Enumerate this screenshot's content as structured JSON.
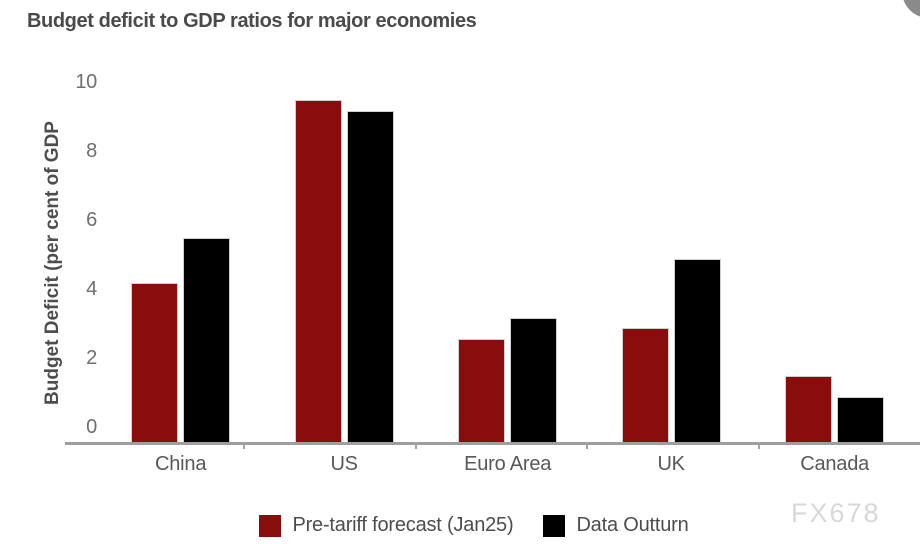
{
  "page": {
    "watermark": "FX678"
  },
  "colors": {
    "series_red": "#8a0d0d",
    "series_black": "#000000",
    "axis_line": "#9e9e9e",
    "title_text": "#4a4a4a",
    "tick_text": "#6e6e6e",
    "corner_circle": "#8a8a8a",
    "watermark_text": "#d8d8d6"
  },
  "chart_data": {
    "type": "bar",
    "title": "Budget deficit to GDP ratios for major economies",
    "ylabel": "Budget Deficit (per cent of GDP",
    "xlabel": "",
    "categories": [
      "China",
      "US",
      "Euro Area",
      "UK",
      "Canada"
    ],
    "series": [
      {
        "name": "Pre-tariff forecast (Jan25)",
        "color": "#8a0d0d",
        "values": [
          4.6,
          9.9,
          3.0,
          3.3,
          1.9
        ]
      },
      {
        "name": "Data Outturn",
        "color": "#000000",
        "values": [
          5.9,
          9.6,
          3.6,
          5.3,
          1.3
        ]
      }
    ],
    "ylim": [
      0,
      10
    ],
    "yticks": [
      0,
      2,
      4,
      6,
      8,
      10
    ],
    "grid": false,
    "legend_position": "bottom"
  }
}
